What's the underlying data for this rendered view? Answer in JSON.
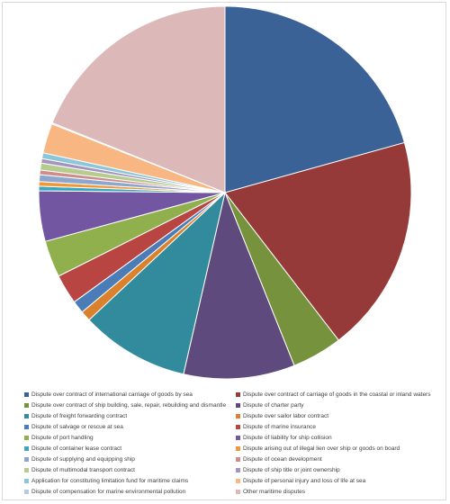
{
  "chart_data": {
    "type": "pie",
    "title": "",
    "start_angle_deg": 0,
    "direction": "clockwise",
    "legend_position": "bottom",
    "series": [
      {
        "name": "Dispute over contract of international carriage of goods by sea",
        "value": 20.8,
        "color": "#3A6296"
      },
      {
        "name": "Dispute over contract of carriage of goods in the coastal or inland waters",
        "value": 19.0,
        "color": "#953A38"
      },
      {
        "name": "Dispute over contract of ship building, sale, repair, rebuilding and dismantle",
        "value": 4.4,
        "color": "#76923C"
      },
      {
        "name": "Dispute of charter party",
        "value": 9.7,
        "color": "#5E4A7D"
      },
      {
        "name": "Dispute of freight forwarding contract",
        "value": 9.5,
        "color": "#318B9C"
      },
      {
        "name": "Dispute over sailor labor contract",
        "value": 0.9,
        "color": "#D9812C"
      },
      {
        "name": "Dispute of salvage or rescue at sea",
        "value": 1.1,
        "color": "#4A7DB8"
      },
      {
        "name": "Dispute of marine insurance",
        "value": 2.6,
        "color": "#B84542"
      },
      {
        "name": "Dispute of port handling",
        "value": 3.2,
        "color": "#8FB04C"
      },
      {
        "name": "Dispute of liability for ship collision",
        "value": 4.4,
        "color": "#7356A1"
      },
      {
        "name": "Dispute of container lease contract",
        "value": 0.4,
        "color": "#3BA6BE"
      },
      {
        "name": "Dispute arising out of illegal lien over ship or goods on board",
        "value": 0.4,
        "color": "#F29736"
      },
      {
        "name": "Dispute of supplying and equipping ship",
        "value": 0.6,
        "color": "#8CA6CE"
      },
      {
        "name": "Dispute of ocean development",
        "value": 0.4,
        "color": "#CE8C8A"
      },
      {
        "name": "Dispute of multimodal transport contract",
        "value": 0.6,
        "color": "#B5CC8E"
      },
      {
        "name": "Dispute of ship title or joint ownership",
        "value": 0.4,
        "color": "#A294BF"
      },
      {
        "name": "Application for constituting limitation fund for maritime claims",
        "value": 0.5,
        "color": "#8CC6DA"
      },
      {
        "name": "Dispute of personal injury and loss of life at sea",
        "value": 2.6,
        "color": "#F7B682"
      },
      {
        "name": "Dispute of compensation for marine environmental pollution",
        "value": 0.1,
        "color": "#B9C9E2"
      },
      {
        "name": "Other maritime disputes",
        "value": 19.0,
        "color": "#DDB8B8"
      }
    ]
  }
}
